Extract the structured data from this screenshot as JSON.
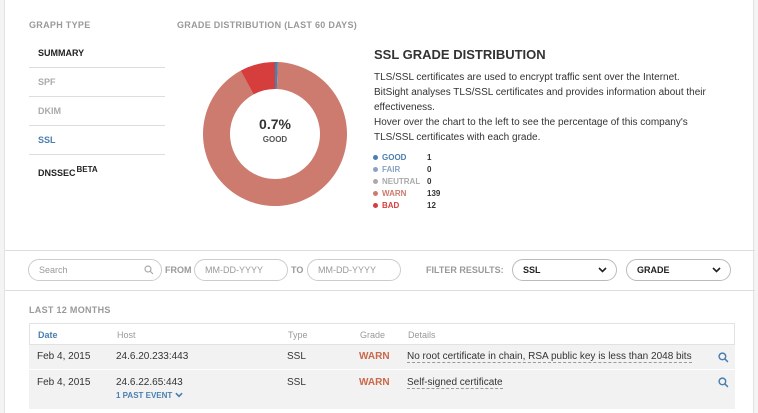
{
  "graph_type": {
    "label": "GRAPH TYPE",
    "items": [
      {
        "label": "SUMMARY"
      },
      {
        "label": "SPF"
      },
      {
        "label": "DKIM"
      },
      {
        "label": "SSL"
      },
      {
        "label": "DNSSEC",
        "sup": "BETA"
      }
    ]
  },
  "distribution": {
    "label": "GRADE DISTRIBUTION (LAST 60 DAYS)",
    "center_value": "0.7%",
    "center_label": "GOOD",
    "title": "SSL GRADE DISTRIBUTION",
    "desc_1": "TLS/SSL certificates are used to encrypt traffic sent over the Internet. BitSight analyses TLS/SSL certificates and provides information about their effectiveness.",
    "desc_2": "Hover over the chart to the left to see the percentage of this company's TLS/SSL certificates with each grade.",
    "legend": [
      {
        "name": "GOOD",
        "count": "1",
        "value": 1,
        "color": "#4a7fb0"
      },
      {
        "name": "FAIR",
        "count": "0",
        "value": 0,
        "color": "#8aa3c0"
      },
      {
        "name": "NEUTRAL",
        "count": "0",
        "value": 0,
        "color": "#aaaaaa"
      },
      {
        "name": "WARN",
        "count": "139",
        "value": 139,
        "color": "#cd7b6e"
      },
      {
        "name": "BAD",
        "count": "12",
        "value": 12,
        "color": "#d63d3d"
      }
    ]
  },
  "filters": {
    "search_placeholder": "Search",
    "from_label": "FROM",
    "from_placeholder": "MM-DD-YYYY",
    "to_label": "TO",
    "to_placeholder": "MM-DD-YYYY",
    "filter_label": "FILTER RESULTS:",
    "filter_type": "SSL",
    "filter_grade": "GRADE"
  },
  "table": {
    "period_label": "LAST 12 MONTHS",
    "headers": {
      "date": "Date",
      "host": "Host",
      "type": "Type",
      "grade": "Grade",
      "details": "Details"
    },
    "rows": [
      {
        "date": "Feb 4, 2015",
        "host": "24.6.20.233:443",
        "type": "SSL",
        "grade": "WARN",
        "details": "No root certificate in chain, RSA public key is less than 2048 bits"
      },
      {
        "date": "Feb 4, 2015",
        "host": "24.6.22.65:443",
        "past_event": "1 PAST EVENT",
        "type": "SSL",
        "grade": "WARN",
        "details": "Self-signed certificate"
      }
    ]
  }
}
